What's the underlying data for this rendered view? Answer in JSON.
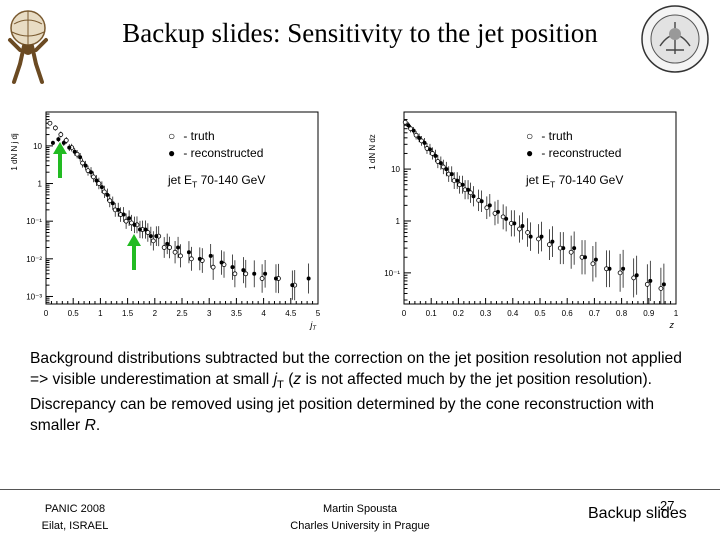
{
  "slide": {
    "title": "Backup slides: Sensitivity to the jet position",
    "body": {
      "p1": "Background distributions subtracted but the correction on the jet position resolution not applied => visible underestimation at small ",
      "jt_j": "j",
      "jt_sub": "T",
      "p2": " (",
      "z_var": "z",
      "p3": " is not affected much by the jet position resolution). Discrepancy can be removed using jet position determined by the cone reconstruction with smaller ",
      "r_var": "R",
      "p4": "."
    },
    "footer": {
      "conf_line1": "PANIC 2008",
      "conf_line2": "Eilat, ISRAEL",
      "author_line1": "Martin Spousta",
      "author_line2": "Charles University in Prague",
      "slide_number": "27",
      "section": "Backup slides"
    },
    "colors": {
      "arrow": "#22bb22"
    },
    "icons": [
      "atlas-logo-icon",
      "university-seal-icon"
    ]
  },
  "chart_data": [
    {
      "type": "scatter",
      "variable": "jT",
      "ylabel_main": "1",
      "ylabel_frac": "1 dN",
      "ylabel_den": "N",
      "ylabel_tail": "j  dj",
      "xlabel": "j",
      "xlabel_sub": "T",
      "xticks": [
        "0",
        "0.5",
        "1",
        "1.5",
        "2",
        "2.5",
        "3",
        "3.5",
        "4",
        "4.5",
        "5"
      ],
      "yticks": [
        "10⁻³",
        "10⁻²",
        "10⁻¹",
        "1",
        "10"
      ],
      "xlim": [
        0,
        5
      ],
      "ylog": true,
      "ylim_exp": [
        -3.2,
        1.9
      ],
      "legend": [
        {
          "sym": "○",
          "text": " - truth"
        },
        {
          "sym": "●",
          "text": " - reconstructed"
        }
      ],
      "annotation_main": "jet E",
      "annotation_sub": "T",
      "annotation_tail": " 70-140 GeV",
      "series": [
        {
          "marker": "open",
          "x": [
            0.1,
            0.2,
            0.3,
            0.4,
            0.5,
            0.6,
            0.7,
            0.8,
            0.9,
            1.0,
            1.1,
            1.2,
            1.3,
            1.4,
            1.5,
            1.6,
            1.7,
            1.8,
            1.9,
            2.0,
            2.1,
            2.2,
            2.3,
            2.4,
            2.5,
            2.7,
            2.9,
            3.1,
            3.3,
            3.5,
            3.7,
            4.0,
            4.3,
            4.6
          ],
          "y": [
            40,
            30,
            20,
            14,
            9,
            6,
            3.5,
            2.2,
            1.5,
            1.0,
            0.6,
            0.35,
            0.2,
            0.15,
            0.1,
            0.09,
            0.08,
            0.06,
            0.05,
            0.03,
            0.04,
            0.02,
            0.02,
            0.015,
            0.012,
            0.01,
            0.009,
            0.006,
            0.007,
            0.004,
            0.004,
            0.003,
            0.003,
            0.002
          ]
        },
        {
          "marker": "filled",
          "x": [
            0.1,
            0.2,
            0.3,
            0.4,
            0.5,
            0.6,
            0.7,
            0.8,
            0.9,
            1.0,
            1.1,
            1.2,
            1.3,
            1.4,
            1.5,
            1.6,
            1.7,
            1.8,
            1.9,
            2.0,
            2.2,
            2.4,
            2.6,
            2.8,
            3.0,
            3.2,
            3.4,
            3.6,
            3.8,
            4.0,
            4.2,
            4.5,
            4.8
          ],
          "y": [
            12,
            15,
            12,
            9,
            7,
            5,
            3,
            2,
            1.2,
            0.8,
            0.5,
            0.3,
            0.2,
            0.15,
            0.12,
            0.08,
            0.06,
            0.06,
            0.04,
            0.04,
            0.025,
            0.02,
            0.015,
            0.01,
            0.012,
            0.008,
            0.006,
            0.005,
            0.004,
            0.004,
            0.003,
            0.002,
            0.003
          ]
        }
      ]
    },
    {
      "type": "scatter",
      "variable": "z",
      "ylabel_main": "1",
      "ylabel_frac": "1 dN",
      "ylabel_den": "N",
      "ylabel_tail": "dz",
      "xlabel": "z",
      "xlabel_sub": "",
      "xticks": [
        "0",
        "0.1",
        "0.2",
        "0.3",
        "0.4",
        "0.5",
        "0.6",
        "0.7",
        "0.8",
        "0.9",
        "1"
      ],
      "yticks": [
        "10⁻¹",
        "1",
        "10"
      ],
      "xlim": [
        0,
        1
      ],
      "ylog": true,
      "ylim_exp": [
        -1.6,
        2.1
      ],
      "legend": [
        {
          "sym": "○",
          "text": " - truth"
        },
        {
          "sym": "●",
          "text": " - reconstructed"
        }
      ],
      "annotation_main": "jet E",
      "annotation_sub": "T",
      "annotation_tail": " 70-140 GeV",
      "series": [
        {
          "marker": "open",
          "x": [
            0.01,
            0.03,
            0.05,
            0.07,
            0.09,
            0.11,
            0.13,
            0.15,
            0.17,
            0.19,
            0.21,
            0.23,
            0.25,
            0.28,
            0.31,
            0.34,
            0.37,
            0.4,
            0.43,
            0.46,
            0.5,
            0.54,
            0.58,
            0.62,
            0.66,
            0.7,
            0.75,
            0.8,
            0.85,
            0.9,
            0.95
          ],
          "y": [
            80,
            60,
            45,
            35,
            25,
            20,
            14,
            11,
            8,
            6,
            5,
            4,
            3.5,
            2.5,
            1.8,
            1.4,
            1.2,
            0.9,
            0.7,
            0.6,
            0.45,
            0.35,
            0.3,
            0.25,
            0.2,
            0.15,
            0.12,
            0.1,
            0.08,
            0.06,
            0.05
          ]
        },
        {
          "marker": "filled",
          "x": [
            0.01,
            0.03,
            0.05,
            0.07,
            0.09,
            0.11,
            0.13,
            0.15,
            0.17,
            0.19,
            0.21,
            0.23,
            0.25,
            0.28,
            0.31,
            0.34,
            0.37,
            0.4,
            0.43,
            0.46,
            0.5,
            0.54,
            0.58,
            0.62,
            0.66,
            0.7,
            0.75,
            0.8,
            0.85,
            0.9,
            0.95
          ],
          "y": [
            70,
            55,
            40,
            32,
            24,
            18,
            13,
            10,
            8,
            6,
            5,
            4,
            3,
            2.4,
            2.0,
            1.5,
            1.1,
            0.9,
            0.8,
            0.5,
            0.5,
            0.4,
            0.3,
            0.3,
            0.2,
            0.18,
            0.12,
            0.12,
            0.09,
            0.07,
            0.06
          ]
        }
      ]
    }
  ]
}
